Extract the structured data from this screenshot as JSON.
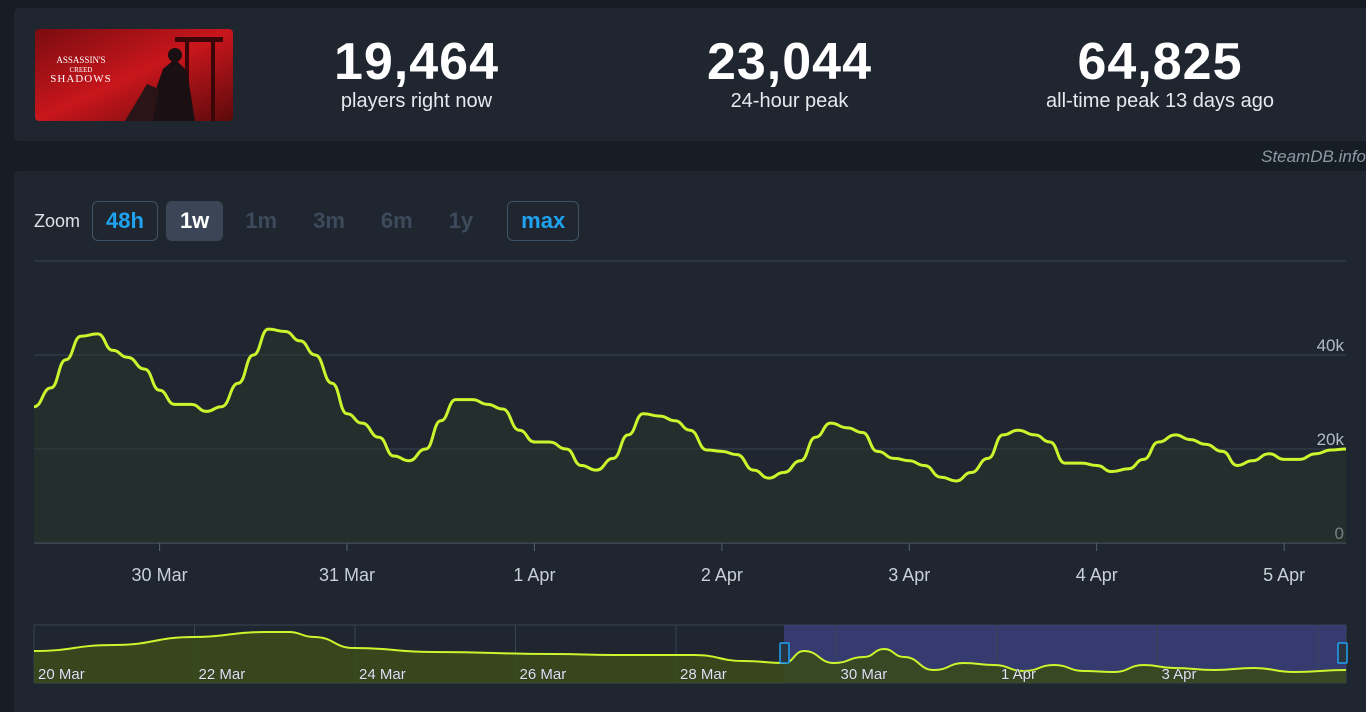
{
  "stats": {
    "current": {
      "value": "19,464",
      "label": "players right now"
    },
    "peak24": {
      "value": "23,044",
      "label": "24-hour peak"
    },
    "alltime": {
      "value": "64,825",
      "label": "all-time peak 13 days ago"
    }
  },
  "game": {
    "logo_line1": "ASSASSIN'S",
    "logo_line2": "CREED",
    "logo_line3": "SHADOWS"
  },
  "credit": "SteamDB.info",
  "zoom": {
    "label": "Zoom",
    "options": [
      {
        "label": "48h",
        "state": "outlined"
      },
      {
        "label": "1w",
        "state": "active"
      },
      {
        "label": "1m",
        "state": "disabled"
      },
      {
        "label": "3m",
        "state": "disabled"
      },
      {
        "label": "6m",
        "state": "disabled"
      },
      {
        "label": "1y",
        "state": "disabled"
      },
      {
        "label": "max",
        "state": "outlined"
      }
    ]
  },
  "colors": {
    "line": "#cdf52e",
    "accent": "#1fa2f0",
    "navigator_selection": "#3b3f7a",
    "navigator_fill": "#3a4a1c"
  },
  "chart_data": {
    "type": "line",
    "ylabel": "",
    "xlabel": "",
    "ylim": [
      0,
      60000
    ],
    "y_ticks": [
      {
        "value": 0,
        "label": "0"
      },
      {
        "value": 20000,
        "label": "20k"
      },
      {
        "value": 40000,
        "label": "40k"
      }
    ],
    "x_ticks": [
      "30 Mar",
      "31 Mar",
      "1 Apr",
      "2 Apr",
      "3 Apr",
      "4 Apr",
      "5 Apr"
    ],
    "x_range_days": [
      -0.67,
      6.33
    ],
    "series": [
      {
        "x_days": [
          -0.67,
          -0.58,
          -0.5,
          -0.42,
          -0.33,
          -0.25,
          -0.17,
          -0.08,
          0,
          0.08,
          0.17,
          0.25,
          0.33,
          0.42,
          0.5,
          0.58,
          0.67,
          0.75,
          0.83,
          0.92,
          1,
          1.08,
          1.17,
          1.25,
          1.33,
          1.42,
          1.5,
          1.58,
          1.67,
          1.75,
          1.83,
          1.92,
          2,
          2.08,
          2.17,
          2.25,
          2.33,
          2.42,
          2.5,
          2.58,
          2.67,
          2.75,
          2.83,
          2.92,
          3,
          3.08,
          3.17,
          3.25,
          3.33,
          3.42,
          3.5,
          3.58,
          3.67,
          3.75,
          3.83,
          3.92,
          4,
          4.08,
          4.17,
          4.25,
          4.33,
          4.42,
          4.5,
          4.58,
          4.67,
          4.75,
          4.83,
          4.92,
          5,
          5.08,
          5.17,
          5.25,
          5.33,
          5.42,
          5.5,
          5.58,
          5.67,
          5.75,
          5.83,
          5.92,
          6,
          6.08,
          6.17,
          6.25,
          6.33
        ],
        "values": [
          29000,
          33000,
          39000,
          44000,
          44500,
          41000,
          39500,
          37000,
          32500,
          29500,
          29500,
          28000,
          29000,
          34000,
          40000,
          45500,
          45000,
          43000,
          40000,
          34000,
          27500,
          25500,
          22500,
          18500,
          17500,
          20000,
          26000,
          30500,
          30500,
          29500,
          28500,
          24000,
          21500,
          21500,
          20000,
          16500,
          15500,
          18000,
          23000,
          27500,
          27000,
          26000,
          24000,
          19800,
          19500,
          18800,
          15500,
          13800,
          15000,
          17500,
          22500,
          25500,
          24500,
          23500,
          19500,
          18000,
          17500,
          16500,
          14000,
          13200,
          15000,
          18000,
          23000,
          24000,
          23000,
          21500,
          17000,
          17000,
          16500,
          15200,
          15800,
          17800,
          21500,
          23000,
          22000,
          21000,
          19500,
          16500,
          17500,
          19000,
          17800,
          17800,
          19000,
          19800,
          20000
        ]
      }
    ]
  },
  "navigator": {
    "labels": [
      "20 Mar",
      "22 Mar",
      "24 Mar",
      "26 Mar",
      "28 Mar",
      "30 Mar",
      "1 Apr",
      "3 Apr"
    ]
  }
}
